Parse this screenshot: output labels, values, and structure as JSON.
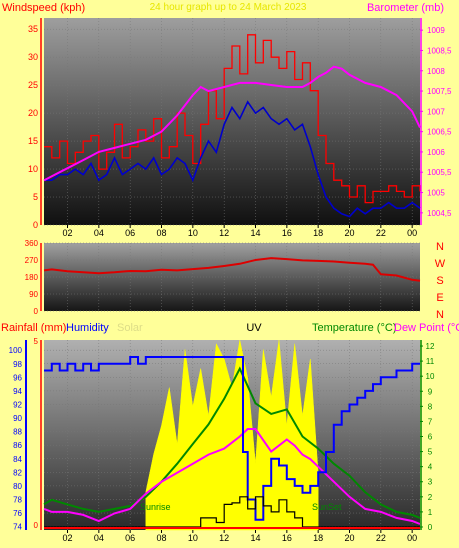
{
  "colors": {
    "background": "#ffff99",
    "wind_speed": "#ff0000",
    "wind_avg": "#0000cc",
    "barometer": "#ff00ff",
    "direction": "#dd0000",
    "humidity": "#0000ff",
    "temperature": "#008800",
    "dew_point": "#ff00ff",
    "solar": "#ffff00",
    "uv": "#000000",
    "rainfall": "#ff0000",
    "right_axis_green": "#008800",
    "compass": "#ff0000"
  },
  "chart_data": [
    {
      "type": "line",
      "panel": "wind_barometer",
      "title": "24 hour graph up to 24 March 2023",
      "left_label": "Windspeed (kph)",
      "right_label": "Barometer (mb)",
      "x_ticks": [
        "02",
        "04",
        "06",
        "08",
        "10",
        "12",
        "14",
        "16",
        "18",
        "20",
        "22",
        "00"
      ],
      "x_range": [
        0.5,
        24.5
      ],
      "left_ticks": [
        "0",
        "5",
        "10",
        "15",
        "20",
        "25",
        "30",
        "35"
      ],
      "left_range": [
        0,
        37
      ],
      "right_ticks": [
        "1004,5",
        "1005",
        "1005,5",
        "1006",
        "1006,5",
        "1007",
        "1007,5",
        "1008",
        "1008,5",
        "1009"
      ],
      "right_range": [
        1004.2,
        1009.3
      ],
      "series": [
        {
          "role": "gust",
          "x": [
            0.5,
            1,
            1.5,
            2,
            2.5,
            3,
            3.5,
            4,
            4.5,
            5,
            5.5,
            6,
            6.5,
            7,
            7.5,
            8,
            8.5,
            9,
            9.5,
            10,
            10.5,
            11,
            11.5,
            12,
            12.5,
            13,
            13.5,
            14,
            14.5,
            15,
            15.5,
            16,
            16.5,
            17,
            17.5,
            18,
            18.5,
            19,
            19.5,
            20,
            20.5,
            21,
            21.5,
            22,
            22.5,
            23,
            23.5,
            24,
            24.5
          ],
          "values": [
            14,
            12,
            15,
            11,
            13,
            15,
            16,
            10,
            13,
            18,
            12,
            14,
            17,
            15,
            19,
            12,
            14,
            20,
            16,
            11,
            18,
            24,
            19,
            28,
            32,
            27,
            34,
            29,
            33,
            30,
            28,
            31,
            26,
            29,
            24,
            16,
            11,
            8,
            7,
            5,
            7,
            4,
            6,
            6,
            7,
            6,
            5,
            7,
            6
          ]
        },
        {
          "role": "average",
          "x": [
            0.5,
            1,
            1.5,
            2,
            2.5,
            3,
            3.5,
            4,
            4.5,
            5,
            5.5,
            6,
            6.5,
            7,
            7.5,
            8,
            8.5,
            9,
            9.5,
            10,
            10.5,
            11,
            11.5,
            12,
            12.5,
            13,
            13.5,
            14,
            14.5,
            15,
            15.5,
            16,
            16.5,
            17,
            17.5,
            18,
            18.5,
            19,
            19.5,
            20,
            20.5,
            21,
            21.5,
            22,
            22.5,
            23,
            23.5,
            24,
            24.5
          ],
          "values": [
            8,
            8,
            9,
            9,
            10,
            9,
            11,
            8,
            9,
            12,
            9,
            10,
            11,
            10,
            12,
            9,
            10,
            12,
            11,
            8,
            12,
            15,
            13,
            18,
            21,
            19,
            22,
            20,
            21,
            19,
            18,
            19,
            17,
            18,
            14,
            9,
            5,
            3,
            2,
            1.5,
            3,
            2,
            3,
            3,
            4,
            3,
            3,
            4,
            3
          ]
        },
        {
          "role": "barometer",
          "x": [
            0.5,
            1,
            2,
            3,
            4,
            5,
            6,
            7,
            8,
            9,
            10,
            10.5,
            11,
            12,
            13,
            14,
            15,
            16,
            17,
            17.5,
            18,
            18.5,
            19,
            19.5,
            20,
            21,
            22,
            23,
            24,
            24.5
          ],
          "values": [
            1005.3,
            1005.4,
            1005.6,
            1005.8,
            1006.0,
            1006.1,
            1006.2,
            1006.3,
            1006.5,
            1006.9,
            1007.4,
            1007.6,
            1007.5,
            1007.6,
            1007.7,
            1007.7,
            1007.65,
            1007.6,
            1007.6,
            1007.7,
            1007.85,
            1007.95,
            1008.1,
            1008.05,
            1007.9,
            1007.7,
            1007.6,
            1007.4,
            1007.0,
            1006.6
          ]
        }
      ]
    },
    {
      "type": "line",
      "panel": "wind_direction",
      "x_range": [
        0.5,
        24.5
      ],
      "left_ticks": [
        "0",
        "90",
        "180",
        "270",
        "360"
      ],
      "left_range": [
        0,
        360
      ],
      "compass": [
        "N",
        "W",
        "S",
        "E",
        "N"
      ],
      "series": [
        {
          "role": "direction",
          "x": [
            0.5,
            1,
            2,
            3,
            4,
            5,
            6,
            7,
            8,
            9,
            10,
            11,
            12,
            13,
            14,
            15,
            16,
            17,
            18,
            19,
            20,
            21,
            21.5,
            22,
            23,
            24,
            24.5
          ],
          "values": [
            215,
            220,
            210,
            205,
            200,
            205,
            212,
            210,
            218,
            215,
            222,
            228,
            238,
            250,
            270,
            280,
            275,
            268,
            265,
            262,
            255,
            250,
            245,
            195,
            188,
            165,
            160
          ]
        }
      ]
    },
    {
      "type": "line",
      "panel": "weather",
      "left_labels": [
        "Rainfall (mm)",
        "Humidity",
        "Solar",
        "UV"
      ],
      "right_labels": [
        "Temperature (°C)",
        "Dew Point (°C)"
      ],
      "x_ticks": [
        "02",
        "04",
        "06",
        "08",
        "10",
        "12",
        "14",
        "16",
        "18",
        "20",
        "22",
        "00"
      ],
      "x_range": [
        0.5,
        24.5
      ],
      "left_ticks": [
        "74",
        "76",
        "78",
        "80",
        "82",
        "84",
        "86",
        "88",
        "90",
        "92",
        "94",
        "96",
        "98",
        "100"
      ],
      "left_range": [
        73.5,
        101.5
      ],
      "right_ticks": [
        "0",
        "1",
        "2",
        "3",
        "4",
        "5",
        "6",
        "7",
        "8",
        "9",
        "10",
        "11",
        "12"
      ],
      "right_range": [
        -0.2,
        12.4
      ],
      "annotations": [
        "Sunrise",
        "SunSet"
      ],
      "rain_ticks": [
        "0",
        "5"
      ],
      "series": [
        {
          "role": "humidity",
          "x": [
            0.5,
            1,
            1.5,
            2,
            2.5,
            3,
            3.5,
            4,
            6,
            6.5,
            7,
            8,
            9,
            10,
            11,
            12,
            12.5,
            13,
            13.2,
            13.5,
            14,
            14.5,
            15,
            15.5,
            16,
            16.5,
            17,
            17.5,
            18,
            18.5,
            19,
            19.5,
            20,
            20.5,
            21,
            21.5,
            22,
            22.5,
            23,
            23.5,
            24,
            24.5
          ],
          "values": [
            97,
            98,
            97,
            98,
            97,
            98,
            97,
            98,
            99,
            98,
            99,
            99,
            99,
            99,
            99,
            99,
            99,
            99,
            85,
            78,
            75,
            80,
            84,
            83,
            81,
            80,
            79,
            80,
            82,
            85,
            89,
            91,
            92,
            93,
            94,
            95,
            96,
            96,
            97,
            97,
            98,
            98
          ]
        },
        {
          "role": "temperature",
          "x": [
            0.5,
            1,
            2,
            3,
            4,
            5,
            6,
            7,
            8,
            9,
            10,
            11,
            12,
            13,
            14,
            15,
            16,
            17,
            18,
            19,
            20,
            21,
            22,
            23,
            24,
            24.5
          ],
          "values": [
            1.5,
            1.8,
            1.5,
            1.2,
            1.0,
            1.2,
            1.4,
            2.0,
            3.0,
            4.2,
            5.5,
            6.8,
            8.5,
            10.5,
            8.2,
            7.5,
            7.8,
            6.0,
            5.2,
            4.2,
            3.4,
            2.3,
            1.5,
            1.0,
            0.8,
            0.6
          ]
        },
        {
          "role": "dew_point",
          "x": [
            0.5,
            1,
            2,
            3,
            4,
            5,
            6,
            7,
            8,
            9,
            10,
            11,
            12,
            13,
            13.5,
            14,
            15,
            16,
            16.5,
            17,
            17.5,
            18,
            19,
            20,
            21,
            22,
            23,
            24,
            24.5
          ],
          "values": [
            1.2,
            1.0,
            1.0,
            0.8,
            0.4,
            0.9,
            1.2,
            2.2,
            3.0,
            3.6,
            4.2,
            4.8,
            5.2,
            6.0,
            6.5,
            6.5,
            5.0,
            5.8,
            5.4,
            4.8,
            4.5,
            4.0,
            3.0,
            2.0,
            1.2,
            1.0,
            0.6,
            0.4,
            0.2
          ]
        },
        {
          "role": "solar",
          "x": [
            7,
            7.5,
            8,
            8.5,
            9,
            9.5,
            10,
            10.5,
            11,
            11.5,
            12,
            12.5,
            13,
            13.5,
            14,
            14.5,
            15,
            15.5,
            16,
            16.5,
            17,
            17.5,
            18
          ],
          "values": [
            0.2,
            0.4,
            0.55,
            0.75,
            0.45,
            0.95,
            0.65,
            0.85,
            0.6,
            0.98,
            0.9,
            0.75,
            1.0,
            0.8,
            0.35,
            0.95,
            0.7,
            1.0,
            0.55,
            0.98,
            0.6,
            0.9,
            0.3
          ]
        },
        {
          "role": "uv",
          "x": [
            0.5,
            10,
            10.5,
            11,
            11.5,
            12,
            12.5,
            13,
            13.5,
            14,
            14.5,
            15,
            15.5,
            16,
            16.5,
            17,
            24.5
          ],
          "values": [
            0,
            0,
            0.6,
            0.6,
            0.3,
            1.5,
            1.6,
            2.0,
            1.2,
            2.0,
            1.4,
            1.0,
            1.8,
            1.0,
            0.6,
            0,
            0
          ]
        },
        {
          "role": "rainfall",
          "x": [
            0.5,
            24.5
          ],
          "values": [
            0,
            0
          ]
        }
      ]
    }
  ]
}
